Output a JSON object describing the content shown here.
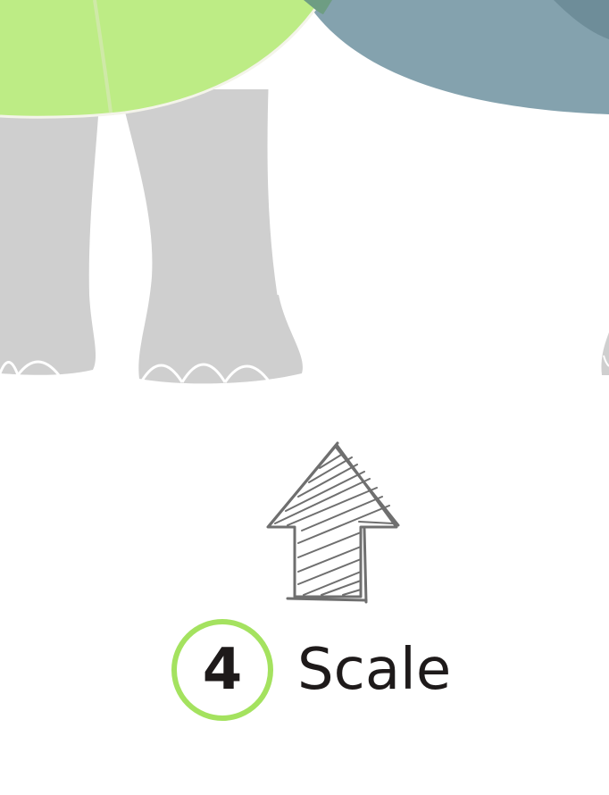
{
  "step": {
    "number": "4",
    "label": "Scale"
  },
  "icons": {
    "arrow": "hand-drawn-up-arrow-icon"
  },
  "colors": {
    "accent_green": "#a4e25f",
    "leaf_green": "#bdec85",
    "slate_blue": "#84a2ae",
    "elephant_gray": "#cfcfcf",
    "sketch_gray": "#6f6f6f",
    "text_dark": "#1e1a1a"
  }
}
